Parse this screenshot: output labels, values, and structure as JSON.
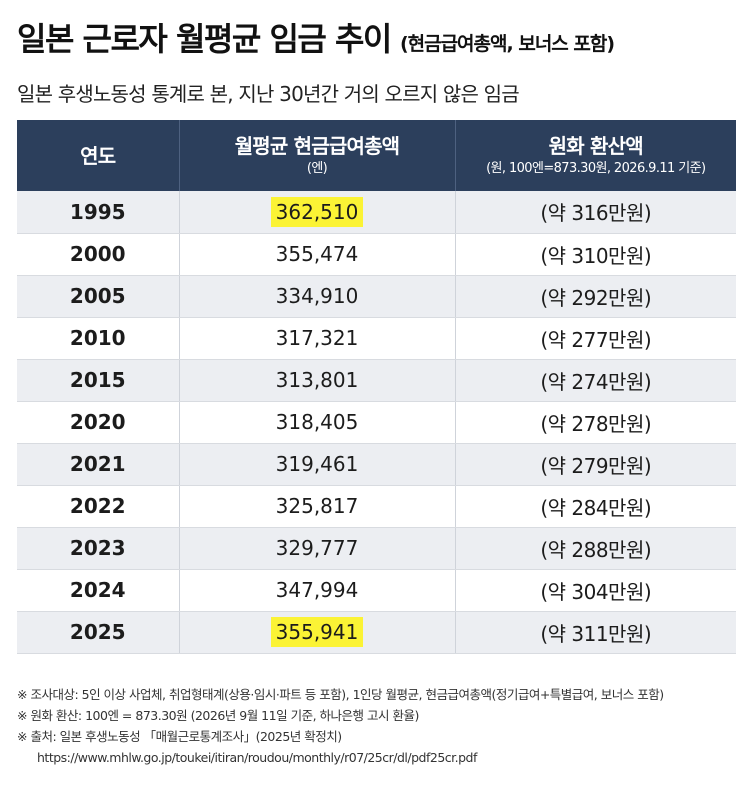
{
  "title": {
    "main": "일본 근로자 월평균 임금 추이",
    "sub": "(현금급여총액, 보너스 포함)"
  },
  "subtitle": "일본 후생노동성 통계로 본, 지난 30년간 거의 오르지 않은 임금",
  "table": {
    "headers": {
      "year": "연도",
      "wage": "월평균 현금급여총액",
      "wage_unit": "(엔)",
      "krw": "원화 환산액",
      "krw_note": "(원, 100엔=873.30원, 2026.9.11 기준)"
    },
    "rows": [
      {
        "year": "1995",
        "wage": "362,510",
        "krw": "(약 316만원)",
        "highlight": true
      },
      {
        "year": "2000",
        "wage": "355,474",
        "krw": "(약 310만원)",
        "highlight": false
      },
      {
        "year": "2005",
        "wage": "334,910",
        "krw": "(약 292만원)",
        "highlight": false
      },
      {
        "year": "2010",
        "wage": "317,321",
        "krw": "(약 277만원)",
        "highlight": false
      },
      {
        "year": "2015",
        "wage": "313,801",
        "krw": "(약 274만원)",
        "highlight": false
      },
      {
        "year": "2020",
        "wage": "318,405",
        "krw": "(약 278만원)",
        "highlight": false
      },
      {
        "year": "2021",
        "wage": "319,461",
        "krw": "(약 279만원)",
        "highlight": false
      },
      {
        "year": "2022",
        "wage": "325,817",
        "krw": "(약 284만원)",
        "highlight": false
      },
      {
        "year": "2023",
        "wage": "329,777",
        "krw": "(약 288만원)",
        "highlight": false
      },
      {
        "year": "2024",
        "wage": "347,994",
        "krw": "(약 304만원)",
        "highlight": false
      },
      {
        "year": "2025",
        "wage": "355,941",
        "krw": "(약 311만원)",
        "highlight": true
      }
    ]
  },
  "notes": {
    "survey": "※ 조사대상: 5인 이상 사업체, 취업형태계(상용·임시·파트 등 포함), 1인당 월평균, 현금급여총액(정기급여+특별급여, 보너스 포함)",
    "conversion": "※ 원화 환산: 100엔 = 873.30원 (2026년 9월 11일 기준, 하나은행 고시 환율)",
    "source": "※ 출처: 일본 후생노동성 「매월근로통계조사」(2025년 확정치)",
    "url": "https://www.mhlw.go.jp/toukei/itiran/roudou/monthly/r07/25cr/dl/pdf25cr.pdf"
  },
  "colors": {
    "header_bg": "#2c3f5c",
    "highlight": "#fbf335",
    "row_alt": "#eceef2"
  }
}
